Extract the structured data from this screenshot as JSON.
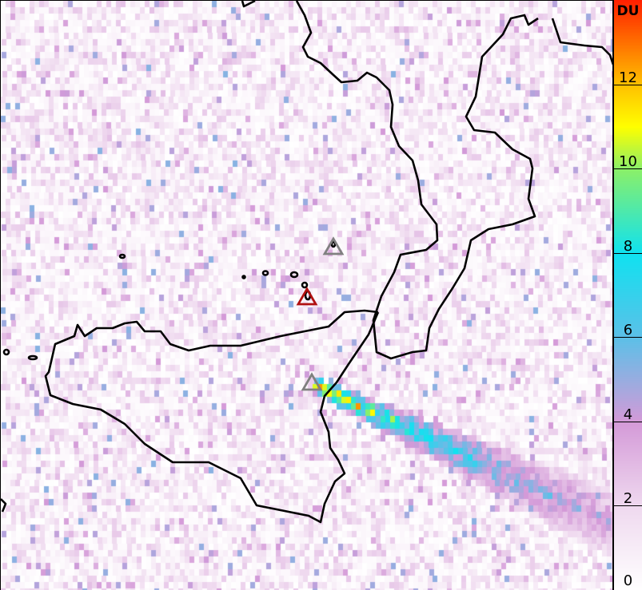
{
  "colorbar": {
    "unit": "DU",
    "range": [
      0,
      14
    ],
    "ticks": [
      "0",
      "2",
      "4",
      "6",
      "8",
      "10",
      "12"
    ],
    "stops": [
      {
        "v": 0,
        "color": "#ffffff"
      },
      {
        "v": 2,
        "color": "#efd9ef"
      },
      {
        "v": 4,
        "color": "#d49ad8"
      },
      {
        "v": 6,
        "color": "#5cc0e8"
      },
      {
        "v": 8,
        "color": "#10e2f0"
      },
      {
        "v": 10,
        "color": "#8cf068"
      },
      {
        "v": 11,
        "color": "#ffff00"
      },
      {
        "v": 12,
        "color": "#ffc000"
      },
      {
        "v": 14,
        "color": "#ff2000"
      }
    ]
  },
  "markers": [
    {
      "name": "volcano-marker-north",
      "color": "#808080"
    },
    {
      "name": "volcano-marker-active",
      "color": "#b01010"
    },
    {
      "name": "volcano-marker-etna",
      "color": "#808080"
    }
  ],
  "coastline_color": "#000000"
}
